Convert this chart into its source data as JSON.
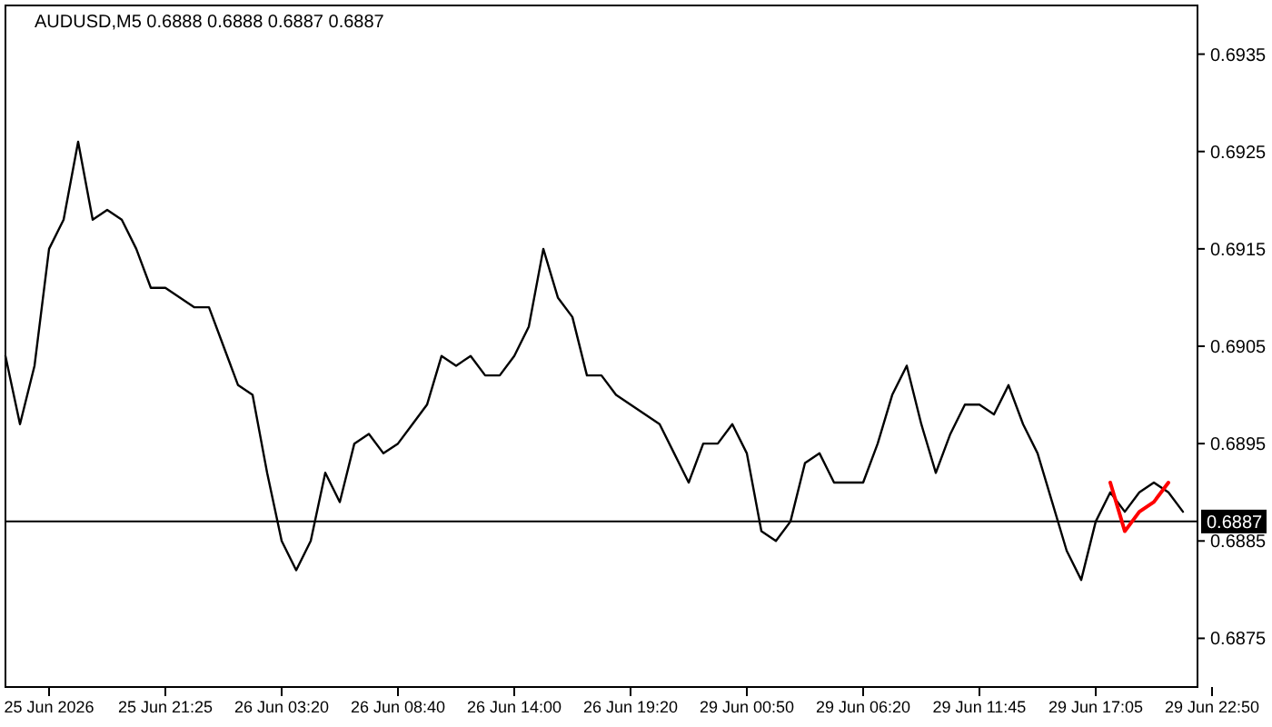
{
  "chart_data": {
    "type": "line",
    "title": "AUDUSD,M5  0.6888 0.6888 0.6887 0.6887",
    "categories": [
      null,
      null,
      null,
      "25 Jun 2026",
      null,
      null,
      null,
      null,
      null,
      null,
      null,
      "25 Jun 21:25",
      null,
      null,
      null,
      null,
      null,
      null,
      null,
      "26 Jun 03:20",
      null,
      null,
      null,
      null,
      null,
      null,
      null,
      "26 Jun 08:40",
      null,
      null,
      null,
      null,
      null,
      null,
      null,
      "26 Jun 14:00",
      null,
      null,
      null,
      null,
      null,
      null,
      null,
      "26 Jun 19:20",
      null,
      null,
      null,
      null,
      null,
      null,
      null,
      "29 Jun 00:50",
      null,
      null,
      null,
      null,
      null,
      null,
      null,
      "29 Jun 06:20",
      null,
      null,
      null,
      null,
      null,
      null,
      null,
      "29 Jun 11:45",
      null,
      null,
      null,
      null,
      null,
      null,
      null,
      "29 Jun 17:05",
      null,
      null,
      null,
      null,
      null,
      null,
      null,
      "29 Jun 22:50"
    ],
    "ylim": [
      0.687,
      0.694
    ],
    "yticks": [
      0.6875,
      0.6885,
      0.6895,
      0.6905,
      0.6915,
      0.6925,
      0.6935
    ],
    "grid": false,
    "marker": "none",
    "series": [
      {
        "color": "#000000",
        "values": [
          0.6904,
          0.6897,
          0.6903,
          0.6915,
          0.6918,
          0.6926,
          0.6918,
          0.6919,
          0.6918,
          0.6915,
          0.6911,
          0.6911,
          0.691,
          0.6909,
          0.6909,
          0.6905,
          0.6901,
          0.69,
          0.6892,
          0.6885,
          0.6882,
          0.6885,
          0.6892,
          0.6889,
          0.6895,
          0.6896,
          0.6894,
          0.6895,
          0.6897,
          0.6899,
          0.6904,
          0.6903,
          0.6904,
          0.6902,
          0.6902,
          0.6904,
          0.6907,
          0.6915,
          0.691,
          0.6908,
          0.6902,
          0.6902,
          0.69,
          0.6899,
          0.6898,
          0.6897,
          0.6894,
          0.6891,
          0.6895,
          0.6895,
          0.6897,
          0.6894,
          0.6886,
          0.6885,
          0.6887,
          0.6893,
          0.6894,
          0.6891,
          0.6891,
          0.6891,
          0.6895,
          0.69,
          0.6903,
          0.6897,
          0.6892,
          0.6896,
          0.6899,
          0.6899,
          0.6898,
          0.6901,
          0.6897,
          0.6894,
          0.6889,
          0.6884,
          0.6881,
          0.6887,
          0.689,
          0.6888,
          0.689,
          0.6891,
          0.689,
          0.6888,
          null,
          null
        ]
      },
      {
        "color": "#ff0000",
        "values": [
          null,
          null,
          null,
          null,
          null,
          null,
          null,
          null,
          null,
          null,
          null,
          null,
          null,
          null,
          null,
          null,
          null,
          null,
          null,
          null,
          null,
          null,
          null,
          null,
          null,
          null,
          null,
          null,
          null,
          null,
          null,
          null,
          null,
          null,
          null,
          null,
          null,
          null,
          null,
          null,
          null,
          null,
          null,
          null,
          null,
          null,
          null,
          null,
          null,
          null,
          null,
          null,
          null,
          null,
          null,
          null,
          null,
          null,
          null,
          null,
          null,
          null,
          null,
          null,
          null,
          null,
          null,
          null,
          null,
          null,
          null,
          null,
          null,
          null,
          null,
          null,
          0.6891,
          0.6886,
          0.6888,
          0.6889,
          0.6891,
          null,
          null,
          null
        ]
      }
    ],
    "ref_lines": [
      {
        "axis": "y",
        "value": 0.6887,
        "label": "0.6887",
        "color": "#000000"
      }
    ]
  }
}
